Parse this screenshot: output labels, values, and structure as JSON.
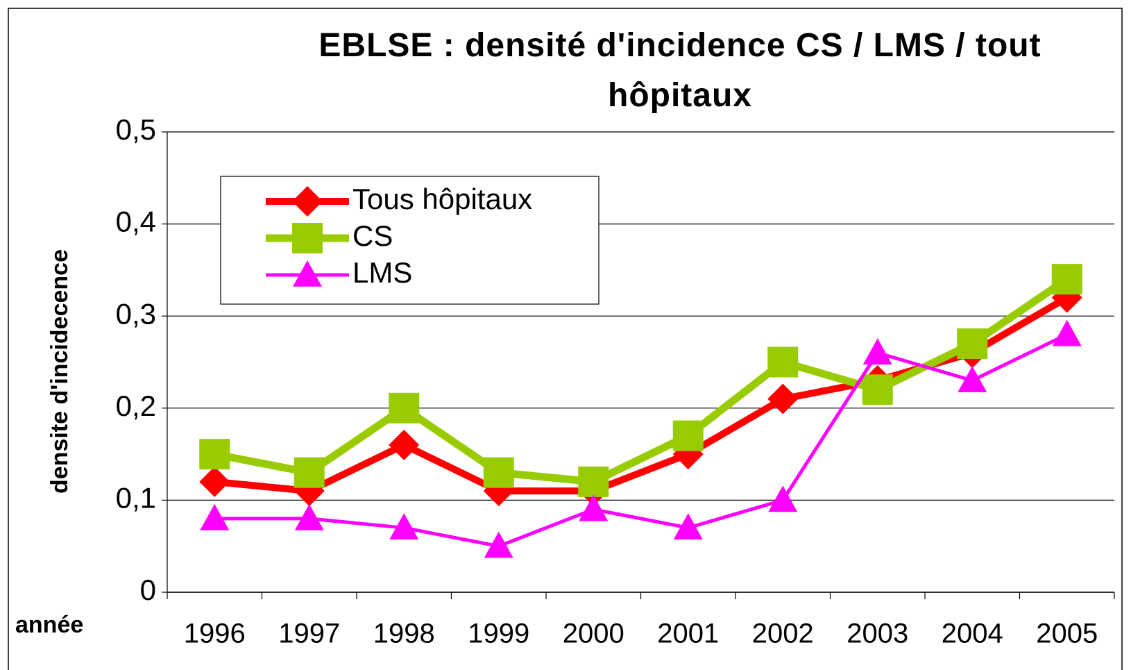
{
  "chart_data": {
    "type": "line",
    "title": "EBLSE : densité d'incidence CS / LMS / tout hôpitaux",
    "x_label": "année",
    "y_label": "densite d'incidecence",
    "categories": [
      "1996",
      "1997",
      "1998",
      "1999",
      "2000",
      "2001",
      "2002",
      "2003",
      "2004",
      "2005"
    ],
    "series": [
      {
        "name": "Tous hôpitaux",
        "color": "#ff0000",
        "marker": "diamond",
        "values": [
          0.12,
          0.11,
          0.16,
          0.11,
          0.11,
          0.15,
          0.21,
          0.23,
          0.26,
          0.32
        ]
      },
      {
        "name": "CS",
        "color": "#99cc00",
        "marker": "square",
        "values": [
          0.15,
          0.13,
          0.2,
          0.13,
          0.12,
          0.17,
          0.25,
          0.22,
          0.27,
          0.34
        ]
      },
      {
        "name": "LMS",
        "color": "#ff00ff",
        "marker": "triangle",
        "values": [
          0.08,
          0.08,
          0.07,
          0.05,
          0.09,
          0.07,
          0.1,
          0.26,
          0.23,
          0.28
        ]
      }
    ],
    "ylim": [
      0,
      0.5
    ],
    "yticks": [
      0,
      {
        "value": 0.1,
        "label": "0,1"
      },
      {
        "value": 0.2,
        "label": "0,2"
      },
      {
        "value": 0.3,
        "label": "0,3"
      },
      {
        "value": 0.4,
        "label": "0,4"
      },
      {
        "value": 0.5,
        "label": "0,5"
      }
    ],
    "grid": true,
    "legend": "upper left"
  }
}
